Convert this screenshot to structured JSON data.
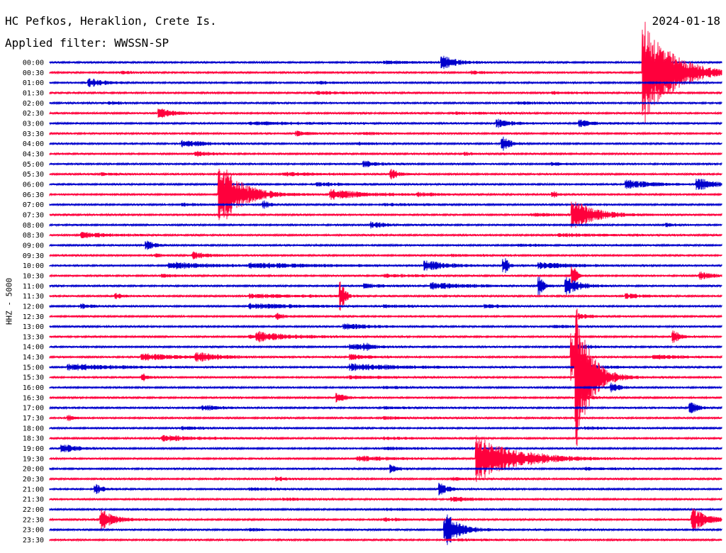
{
  "header": {
    "station": "HC Pefkos, Heraklion, Crete Is.",
    "date": "2024-01-18",
    "filter": "Applied filter: WWSSN-SP"
  },
  "chart_data": {
    "type": "line",
    "title": "HC Pefkos, Heraklion, Crete Is.",
    "subtitle": "Applied filter: WWSSN-SP",
    "date": "2024-01-18",
    "ylabel": "HHZ - 5000",
    "colors": {
      "even": "#0000cc",
      "odd": "#ff003c",
      "text": "#000000"
    },
    "rows": [
      {
        "label": "00:00",
        "events": [
          {
            "x": 0.586,
            "a": 0.7,
            "d": 0.02
          },
          {
            "x": 0.5,
            "a": 0.15,
            "d": 0.05
          }
        ]
      },
      {
        "label": "00:30",
        "events": [
          {
            "x": 0.885,
            "a": 5.8,
            "d": 0.04
          },
          {
            "x": 0.63,
            "a": 0.15,
            "d": 0.02
          },
          {
            "x": 0.11,
            "a": 0.1,
            "d": 0.02
          }
        ]
      },
      {
        "label": "01:00",
        "events": [
          {
            "x": 0.06,
            "a": 0.45,
            "d": 0.02
          },
          {
            "x": 0.4,
            "a": 0.12,
            "d": 0.03
          }
        ]
      },
      {
        "label": "01:30",
        "events": [
          {
            "x": 0.4,
            "a": 0.15,
            "d": 0.05
          },
          {
            "x": 0.75,
            "a": 0.12,
            "d": 0.05
          }
        ]
      },
      {
        "label": "02:00",
        "events": [
          {
            "x": 0.09,
            "a": 0.15,
            "d": 0.02
          },
          {
            "x": 0.7,
            "a": 0.1,
            "d": 0.05
          }
        ]
      },
      {
        "label": "02:30",
        "events": [
          {
            "x": 0.165,
            "a": 0.5,
            "d": 0.02
          },
          {
            "x": 0.6,
            "a": 0.12,
            "d": 0.06
          }
        ]
      },
      {
        "label": "03:00",
        "events": [
          {
            "x": 0.668,
            "a": 0.4,
            "d": 0.02
          },
          {
            "x": 0.79,
            "a": 0.35,
            "d": 0.02
          },
          {
            "x": 0.3,
            "a": 0.15,
            "d": 0.1
          }
        ]
      },
      {
        "label": "03:30",
        "events": [
          {
            "x": 0.37,
            "a": 0.2,
            "d": 0.02
          },
          {
            "x": 0.47,
            "a": 0.12,
            "d": 0.03
          }
        ]
      },
      {
        "label": "04:00",
        "events": [
          {
            "x": 0.2,
            "a": 0.3,
            "d": 0.04
          },
          {
            "x": 0.675,
            "a": 0.8,
            "d": 0.01
          },
          {
            "x": 0.46,
            "a": 0.15,
            "d": 0.03
          }
        ]
      },
      {
        "label": "04:30",
        "events": [
          {
            "x": 0.22,
            "a": 0.25,
            "d": 0.02
          },
          {
            "x": 0.62,
            "a": 0.12,
            "d": 0.02
          }
        ]
      },
      {
        "label": "05:00",
        "events": [
          {
            "x": 0.47,
            "a": 0.3,
            "d": 0.02
          },
          {
            "x": 0.75,
            "a": 0.15,
            "d": 0.02
          }
        ]
      },
      {
        "label": "05:30",
        "events": [
          {
            "x": 0.51,
            "a": 0.5,
            "d": 0.01
          },
          {
            "x": 0.35,
            "a": 0.18,
            "d": 0.06
          },
          {
            "x": 0.08,
            "a": 0.12,
            "d": 0.03
          }
        ]
      },
      {
        "label": "06:00",
        "events": [
          {
            "x": 0.86,
            "a": 0.4,
            "d": 0.04
          },
          {
            "x": 0.965,
            "a": 0.7,
            "d": 0.02
          },
          {
            "x": 0.4,
            "a": 0.15,
            "d": 0.05
          }
        ]
      },
      {
        "label": "06:30",
        "events": [
          {
            "x": 0.255,
            "a": 3.6,
            "d": 0.03
          },
          {
            "x": 0.42,
            "a": 0.5,
            "d": 0.05
          },
          {
            "x": 0.75,
            "a": 0.3,
            "d": 0.01
          },
          {
            "x": 0.55,
            "a": 0.15,
            "d": 0.03
          }
        ]
      },
      {
        "label": "07:00",
        "events": [
          {
            "x": 0.32,
            "a": 0.35,
            "d": 0.01
          },
          {
            "x": 0.5,
            "a": 0.1,
            "d": 0.08
          },
          {
            "x": 0.2,
            "a": 0.12,
            "d": 0.05
          }
        ]
      },
      {
        "label": "07:30",
        "events": [
          {
            "x": 0.78,
            "a": 1.7,
            "d": 0.03
          },
          {
            "x": 0.72,
            "a": 0.15,
            "d": 0.04
          }
        ]
      },
      {
        "label": "08:00",
        "events": [
          {
            "x": 0.48,
            "a": 0.3,
            "d": 0.02
          },
          {
            "x": 0.92,
            "a": 0.2,
            "d": 0.01
          }
        ]
      },
      {
        "label": "08:30",
        "events": [
          {
            "x": 0.05,
            "a": 0.3,
            "d": 0.04
          },
          {
            "x": 0.76,
            "a": 0.15,
            "d": 0.08
          }
        ]
      },
      {
        "label": "09:00",
        "events": [
          {
            "x": 0.146,
            "a": 0.5,
            "d": 0.01
          },
          {
            "x": 0.7,
            "a": 0.12,
            "d": 0.05
          }
        ]
      },
      {
        "label": "09:30",
        "events": [
          {
            "x": 0.215,
            "a": 0.35,
            "d": 0.02
          },
          {
            "x": 0.16,
            "a": 0.15,
            "d": 0.01
          },
          {
            "x": 0.6,
            "a": 0.1,
            "d": 0.05
          }
        ]
      },
      {
        "label": "10:00",
        "events": [
          {
            "x": 0.18,
            "a": 0.35,
            "d": 0.06
          },
          {
            "x": 0.56,
            "a": 0.5,
            "d": 0.03
          },
          {
            "x": 0.678,
            "a": 0.9,
            "d": 0.005
          },
          {
            "x": 0.73,
            "a": 0.3,
            "d": 0.05
          },
          {
            "x": 0.3,
            "a": 0.25,
            "d": 0.1
          }
        ]
      },
      {
        "label": "10:30",
        "events": [
          {
            "x": 0.78,
            "a": 1.2,
            "d": 0.005
          },
          {
            "x": 0.97,
            "a": 0.35,
            "d": 0.02
          },
          {
            "x": 0.5,
            "a": 0.15,
            "d": 0.05
          },
          {
            "x": 0.17,
            "a": 0.15,
            "d": 0.02
          }
        ]
      },
      {
        "label": "11:00",
        "events": [
          {
            "x": 0.57,
            "a": 0.35,
            "d": 0.05
          },
          {
            "x": 0.73,
            "a": 1.0,
            "d": 0.005
          },
          {
            "x": 0.77,
            "a": 0.9,
            "d": 0.02
          },
          {
            "x": 0.47,
            "a": 0.2,
            "d": 0.03
          }
        ]
      },
      {
        "label": "11:30",
        "events": [
          {
            "x": 0.435,
            "a": 1.5,
            "d": 0.005
          },
          {
            "x": 0.1,
            "a": 0.3,
            "d": 0.01
          },
          {
            "x": 0.3,
            "a": 0.2,
            "d": 0.08
          },
          {
            "x": 0.86,
            "a": 0.25,
            "d": 0.02
          }
        ]
      },
      {
        "label": "12:00",
        "events": [
          {
            "x": 0.3,
            "a": 0.25,
            "d": 0.08
          },
          {
            "x": 0.05,
            "a": 0.2,
            "d": 0.02
          },
          {
            "x": 0.65,
            "a": 0.2,
            "d": 0.02
          },
          {
            "x": 0.5,
            "a": 0.15,
            "d": 0.03
          }
        ]
      },
      {
        "label": "12:30",
        "events": [
          {
            "x": 0.34,
            "a": 0.3,
            "d": 0.01
          },
          {
            "x": 0.79,
            "a": 0.25,
            "d": 0.02
          }
        ]
      },
      {
        "label": "13:00",
        "events": [
          {
            "x": 0.44,
            "a": 0.3,
            "d": 0.04
          },
          {
            "x": 0.75,
            "a": 0.12,
            "d": 0.04
          }
        ]
      },
      {
        "label": "13:30",
        "events": [
          {
            "x": 0.31,
            "a": 0.45,
            "d": 0.05
          },
          {
            "x": 0.93,
            "a": 0.6,
            "d": 0.01
          },
          {
            "x": 0.3,
            "a": 0.15,
            "d": 0.03
          }
        ]
      },
      {
        "label": "14:00",
        "events": [
          {
            "x": 0.45,
            "a": 0.35,
            "d": 0.02
          },
          {
            "x": 0.47,
            "a": 0.3,
            "d": 0.01
          },
          {
            "x": 0.79,
            "a": 0.25,
            "d": 0.02
          }
        ]
      },
      {
        "label": "14:30",
        "events": [
          {
            "x": 0.14,
            "a": 0.35,
            "d": 0.05
          },
          {
            "x": 0.22,
            "a": 0.45,
            "d": 0.03
          },
          {
            "x": 0.45,
            "a": 0.25,
            "d": 0.03
          },
          {
            "x": 0.779,
            "a": 3.2,
            "d": 0.005
          },
          {
            "x": 0.9,
            "a": 0.2,
            "d": 0.05
          }
        ]
      },
      {
        "label": "15:00",
        "events": [
          {
            "x": 0.03,
            "a": 0.3,
            "d": 0.08
          },
          {
            "x": 0.45,
            "a": 0.35,
            "d": 0.08
          },
          {
            "x": 0.79,
            "a": 0.2,
            "d": 0.05
          }
        ]
      },
      {
        "label": "15:30",
        "events": [
          {
            "x": 0.785,
            "a": 7.5,
            "d": 0.02
          },
          {
            "x": 0.14,
            "a": 0.35,
            "d": 0.01
          },
          {
            "x": 0.45,
            "a": 0.15,
            "d": 0.05
          }
        ]
      },
      {
        "label": "16:00",
        "events": [
          {
            "x": 0.838,
            "a": 0.6,
            "d": 0.01
          },
          {
            "x": 0.5,
            "a": 0.12,
            "d": 0.04
          }
        ]
      },
      {
        "label": "16:30",
        "events": [
          {
            "x": 0.43,
            "a": 0.5,
            "d": 0.01
          },
          {
            "x": 0.8,
            "a": 0.15,
            "d": 0.02
          }
        ]
      },
      {
        "label": "17:00",
        "events": [
          {
            "x": 0.23,
            "a": 0.3,
            "d": 0.02
          },
          {
            "x": 0.955,
            "a": 0.6,
            "d": 0.01
          },
          {
            "x": 0.5,
            "a": 0.12,
            "d": 0.04
          }
        ]
      },
      {
        "label": "17:30",
        "events": [
          {
            "x": 0.03,
            "a": 0.25,
            "d": 0.01
          },
          {
            "x": 0.5,
            "a": 0.12,
            "d": 0.05
          }
        ]
      },
      {
        "label": "18:00",
        "events": [
          {
            "x": 0.2,
            "a": 0.15,
            "d": 0.03
          },
          {
            "x": 0.8,
            "a": 0.12,
            "d": 0.03
          }
        ]
      },
      {
        "label": "18:30",
        "events": [
          {
            "x": 0.17,
            "a": 0.3,
            "d": 0.05
          },
          {
            "x": 0.5,
            "a": 0.12,
            "d": 0.05
          }
        ]
      },
      {
        "label": "19:00",
        "events": [
          {
            "x": 0.02,
            "a": 0.5,
            "d": 0.02
          },
          {
            "x": 0.5,
            "a": 0.12,
            "d": 0.05
          }
        ]
      },
      {
        "label": "19:30",
        "events": [
          {
            "x": 0.637,
            "a": 2.5,
            "d": 0.05
          },
          {
            "x": 0.46,
            "a": 0.3,
            "d": 0.04
          },
          {
            "x": 0.72,
            "a": 0.2,
            "d": 0.03
          }
        ]
      },
      {
        "label": "20:00",
        "events": [
          {
            "x": 0.51,
            "a": 0.4,
            "d": 0.01
          },
          {
            "x": 0.8,
            "a": 0.15,
            "d": 0.04
          }
        ]
      },
      {
        "label": "20:30",
        "events": [
          {
            "x": 0.34,
            "a": 0.25,
            "d": 0.01
          },
          {
            "x": 0.6,
            "a": 0.12,
            "d": 0.04
          }
        ]
      },
      {
        "label": "21:00",
        "events": [
          {
            "x": 0.07,
            "a": 0.5,
            "d": 0.01
          },
          {
            "x": 0.583,
            "a": 0.6,
            "d": 0.01
          },
          {
            "x": 0.3,
            "a": 0.12,
            "d": 0.05
          }
        ]
      },
      {
        "label": "21:30",
        "events": [
          {
            "x": 0.6,
            "a": 0.2,
            "d": 0.05
          },
          {
            "x": 0.35,
            "a": 0.12,
            "d": 0.04
          }
        ]
      },
      {
        "label": "22:00",
        "events": [
          {
            "x": 0.5,
            "a": 0.08,
            "d": 0.1
          }
        ]
      },
      {
        "label": "22:30",
        "events": [
          {
            "x": 0.078,
            "a": 1.0,
            "d": 0.02
          },
          {
            "x": 0.958,
            "a": 1.2,
            "d": 0.02
          },
          {
            "x": 0.5,
            "a": 0.12,
            "d": 0.05
          }
        ]
      },
      {
        "label": "23:00",
        "events": [
          {
            "x": 0.59,
            "a": 1.8,
            "d": 0.02
          },
          {
            "x": 0.3,
            "a": 0.12,
            "d": 0.04
          }
        ]
      },
      {
        "label": "23:30",
        "events": [
          {
            "x": 0.6,
            "a": 0.1,
            "d": 0.05
          }
        ]
      }
    ]
  }
}
